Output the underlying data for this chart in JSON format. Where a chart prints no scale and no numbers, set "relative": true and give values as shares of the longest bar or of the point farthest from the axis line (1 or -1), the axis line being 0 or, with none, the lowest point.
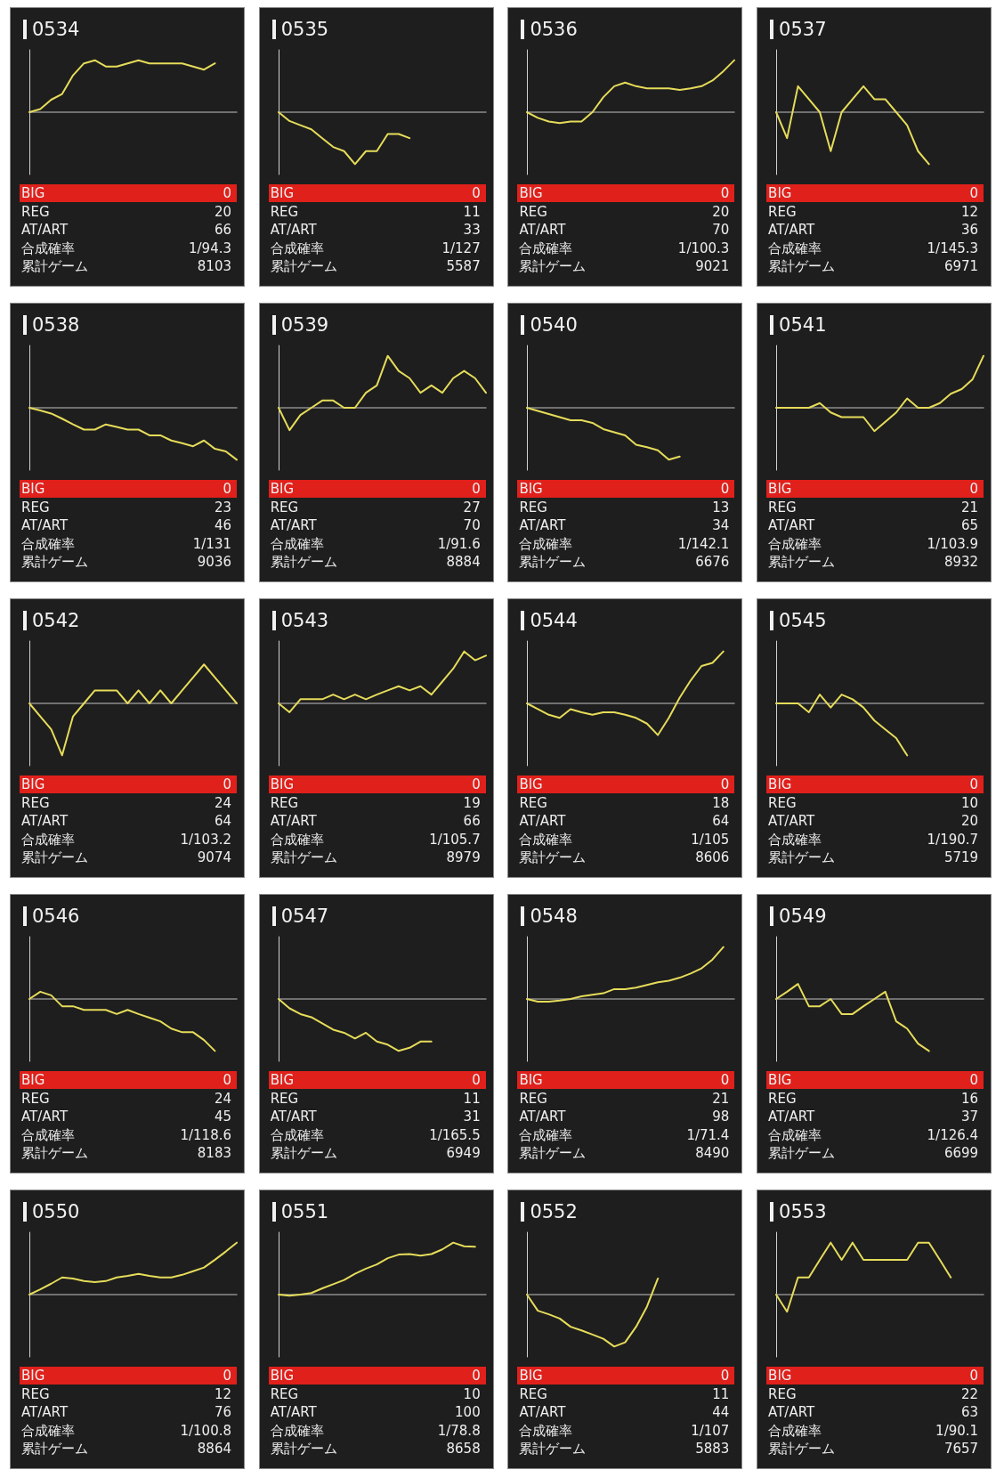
{
  "chart_data": [
    {
      "type": "line",
      "title": "0534",
      "relative": true,
      "color": "#e6dc5a",
      "categories": [
        null,
        null,
        null,
        null,
        null,
        null,
        null,
        null,
        null,
        null,
        null,
        null,
        null,
        null,
        null,
        null,
        null,
        null,
        null,
        null
      ],
      "values": [
        0,
        0.06,
        0.24,
        0.35,
        0.71,
        0.94,
        1,
        0.88,
        0.88,
        0.94,
        1,
        0.94,
        0.94,
        0.94,
        0.94,
        0.88,
        0.82,
        0.94,
        null,
        null
      ],
      "annotations": [
        "BIG",
        "0",
        "REG",
        "20",
        "AT/ART",
        "66",
        "合成確率",
        "1/94.3",
        "累計ゲーム",
        "8103"
      ]
    },
    {
      "type": "line",
      "title": "0535",
      "relative": true,
      "color": "#e6dc5a",
      "categories": [
        null,
        null,
        null,
        null,
        null,
        null,
        null,
        null,
        null,
        null,
        null,
        null,
        null,
        null,
        null,
        null,
        null,
        null,
        null,
        null
      ],
      "values": [
        0,
        -0.17,
        -0.25,
        -0.33,
        -0.5,
        -0.67,
        -0.75,
        -1,
        -0.75,
        -0.75,
        -0.42,
        -0.42,
        -0.5,
        null,
        null,
        null,
        null,
        null,
        null,
        null
      ],
      "annotations": [
        "BIG",
        "0",
        "REG",
        "11",
        "AT/ART",
        "33",
        "合成確率",
        "1/127",
        "累計ゲーム",
        "5587"
      ]
    },
    {
      "type": "line",
      "title": "0536",
      "relative": true,
      "color": "#e6dc5a",
      "categories": [
        null,
        null,
        null,
        null,
        null,
        null,
        null,
        null,
        null,
        null,
        null,
        null,
        null,
        null,
        null,
        null,
        null,
        null,
        null,
        null
      ],
      "values": [
        0,
        -0.11,
        -0.18,
        -0.21,
        -0.18,
        -0.18,
        0,
        0.29,
        0.5,
        0.57,
        0.5,
        0.46,
        0.46,
        0.46,
        0.43,
        0.46,
        0.5,
        0.61,
        0.79,
        1
      ],
      "annotations": [
        "BIG",
        "0",
        "REG",
        "20",
        "AT/ART",
        "70",
        "合成確率",
        "1/100.3",
        "累計ゲーム",
        "9021"
      ]
    },
    {
      "type": "line",
      "title": "0537",
      "relative": true,
      "color": "#e6dc5a",
      "categories": [
        null,
        null,
        null,
        null,
        null,
        null,
        null,
        null,
        null,
        null,
        null,
        null,
        null,
        null,
        null,
        null,
        null,
        null,
        null,
        null
      ],
      "values": [
        0,
        -0.5,
        0.5,
        0.25,
        0,
        -0.75,
        0,
        0.25,
        0.5,
        0.25,
        0.25,
        0,
        -0.25,
        -0.75,
        -1,
        null,
        null,
        null,
        null,
        null
      ],
      "annotations": [
        "BIG",
        "0",
        "REG",
        "12",
        "AT/ART",
        "36",
        "合成確率",
        "1/145.3",
        "累計ゲーム",
        "6971"
      ]
    },
    {
      "type": "line",
      "title": "0538",
      "relative": true,
      "color": "#e6dc5a",
      "categories": [
        null,
        null,
        null,
        null,
        null,
        null,
        null,
        null,
        null,
        null,
        null,
        null,
        null,
        null,
        null,
        null,
        null,
        null,
        null,
        null
      ],
      "values": [
        0,
        -0.05,
        -0.11,
        -0.21,
        -0.32,
        -0.42,
        -0.42,
        -0.32,
        -0.37,
        -0.42,
        -0.42,
        -0.53,
        -0.53,
        -0.63,
        -0.68,
        -0.74,
        -0.63,
        -0.79,
        -0.84,
        -1
      ],
      "annotations": [
        "BIG",
        "0",
        "REG",
        "23",
        "AT/ART",
        "46",
        "合成確率",
        "1/131",
        "累計ゲーム",
        "9036"
      ]
    },
    {
      "type": "line",
      "title": "0539",
      "relative": true,
      "color": "#e6dc5a",
      "categories": [
        null,
        null,
        null,
        null,
        null,
        null,
        null,
        null,
        null,
        null,
        null,
        null,
        null,
        null,
        null,
        null,
        null,
        null,
        null,
        null
      ],
      "values": [
        0,
        -0.43,
        -0.14,
        0,
        0.14,
        0.14,
        0,
        0,
        0.29,
        0.43,
        1,
        0.71,
        0.57,
        0.29,
        0.43,
        0.29,
        0.57,
        0.71,
        0.57,
        0.29
      ],
      "annotations": [
        "BIG",
        "0",
        "REG",
        "27",
        "AT/ART",
        "70",
        "合成確率",
        "1/91.6",
        "累計ゲーム",
        "8884"
      ]
    },
    {
      "type": "line",
      "title": "0540",
      "relative": true,
      "color": "#e6dc5a",
      "categories": [
        null,
        null,
        null,
        null,
        null,
        null,
        null,
        null,
        null,
        null,
        null,
        null,
        null,
        null,
        null,
        null,
        null,
        null,
        null,
        null
      ],
      "values": [
        0,
        -0.06,
        -0.12,
        -0.18,
        -0.24,
        -0.24,
        -0.29,
        -0.41,
        -0.47,
        -0.53,
        -0.71,
        -0.76,
        -0.82,
        -1,
        -0.94,
        null,
        null,
        null,
        null,
        null
      ],
      "annotations": [
        "BIG",
        "0",
        "REG",
        "13",
        "AT/ART",
        "34",
        "合成確率",
        "1/142.1",
        "累計ゲーム",
        "6676"
      ]
    },
    {
      "type": "line",
      "title": "0541",
      "relative": true,
      "color": "#e6dc5a",
      "categories": [
        null,
        null,
        null,
        null,
        null,
        null,
        null,
        null,
        null,
        null,
        null,
        null,
        null,
        null,
        null,
        null,
        null,
        null,
        null,
        null
      ],
      "values": [
        0,
        0,
        0,
        0,
        0.09,
        -0.09,
        -0.18,
        -0.18,
        -0.18,
        -0.45,
        -0.27,
        -0.09,
        0.18,
        0,
        0,
        0.09,
        0.27,
        0.36,
        0.55,
        1
      ],
      "annotations": [
        "BIG",
        "0",
        "REG",
        "21",
        "AT/ART",
        "65",
        "合成確率",
        "1/103.9",
        "累計ゲーム",
        "8932"
      ]
    },
    {
      "type": "line",
      "title": "0542",
      "relative": true,
      "color": "#e6dc5a",
      "categories": [
        null,
        null,
        null,
        null,
        null,
        null,
        null,
        null,
        null,
        null,
        null,
        null,
        null,
        null,
        null,
        null,
        null,
        null,
        null,
        null
      ],
      "values": [
        0,
        -0.25,
        -0.5,
        -1,
        -0.25,
        0,
        0.25,
        0.25,
        0.25,
        0,
        0.25,
        0,
        0.25,
        0,
        0.25,
        0.5,
        0.75,
        0.5,
        0.25,
        0
      ],
      "annotations": [
        "BIG",
        "0",
        "REG",
        "24",
        "AT/ART",
        "64",
        "合成確率",
        "1/103.2",
        "累計ゲーム",
        "9074"
      ]
    },
    {
      "type": "line",
      "title": "0543",
      "relative": true,
      "color": "#e6dc5a",
      "categories": [
        null,
        null,
        null,
        null,
        null,
        null,
        null,
        null,
        null,
        null,
        null,
        null,
        null,
        null,
        null,
        null,
        null,
        null,
        null,
        null
      ],
      "values": [
        0,
        -0.17,
        0.08,
        0.08,
        0.08,
        0.17,
        0.08,
        0.17,
        0.08,
        0.17,
        0.25,
        0.33,
        0.25,
        0.33,
        0.17,
        0.42,
        0.67,
        1,
        0.83,
        0.92
      ],
      "annotations": [
        "BIG",
        "0",
        "REG",
        "19",
        "AT/ART",
        "66",
        "合成確率",
        "1/105.7",
        "累計ゲーム",
        "8979"
      ]
    },
    {
      "type": "line",
      "title": "0544",
      "relative": true,
      "color": "#e6dc5a",
      "categories": [
        null,
        null,
        null,
        null,
        null,
        null,
        null,
        null,
        null,
        null,
        null,
        null,
        null,
        null,
        null,
        null,
        null,
        null,
        null,
        null
      ],
      "values": [
        0,
        -0.11,
        -0.22,
        -0.28,
        -0.11,
        -0.17,
        -0.22,
        -0.17,
        -0.17,
        -0.22,
        -0.28,
        -0.39,
        -0.61,
        -0.28,
        0.11,
        0.44,
        0.72,
        0.78,
        1,
        null
      ],
      "annotations": [
        "BIG",
        "0",
        "REG",
        "18",
        "AT/ART",
        "64",
        "合成確率",
        "1/105",
        "累計ゲーム",
        "8606"
      ]
    },
    {
      "type": "line",
      "title": "0545",
      "relative": true,
      "color": "#e6dc5a",
      "categories": [
        null,
        null,
        null,
        null,
        null,
        null,
        null,
        null,
        null,
        null,
        null,
        null,
        null,
        null,
        null,
        null,
        null,
        null,
        null,
        null
      ],
      "values": [
        0,
        0,
        0,
        -0.17,
        0.17,
        -0.08,
        0.17,
        0.08,
        -0.08,
        -0.33,
        -0.5,
        -0.67,
        -1,
        null,
        null,
        null,
        null,
        null,
        null,
        null
      ],
      "annotations": [
        "BIG",
        "0",
        "REG",
        "10",
        "AT/ART",
        "20",
        "合成確率",
        "1/190.7",
        "累計ゲーム",
        "5719"
      ]
    },
    {
      "type": "line",
      "title": "0546",
      "relative": true,
      "color": "#e6dc5a",
      "categories": [
        null,
        null,
        null,
        null,
        null,
        null,
        null,
        null,
        null,
        null,
        null,
        null,
        null,
        null,
        null,
        null,
        null,
        null,
        null,
        null
      ],
      "values": [
        0,
        0.14,
        0.07,
        -0.14,
        -0.14,
        -0.21,
        -0.21,
        -0.21,
        -0.29,
        -0.21,
        -0.29,
        -0.36,
        -0.43,
        -0.57,
        -0.64,
        -0.64,
        -0.79,
        -1,
        null,
        null
      ],
      "annotations": [
        "BIG",
        "0",
        "REG",
        "24",
        "AT/ART",
        "45",
        "合成確率",
        "1/118.6",
        "累計ゲーム",
        "8183"
      ]
    },
    {
      "type": "line",
      "title": "0547",
      "relative": true,
      "color": "#e6dc5a",
      "categories": [
        null,
        null,
        null,
        null,
        null,
        null,
        null,
        null,
        null,
        null,
        null,
        null,
        null,
        null,
        null,
        null,
        null,
        null,
        null,
        null
      ],
      "values": [
        0,
        -0.18,
        -0.29,
        -0.35,
        -0.47,
        -0.59,
        -0.65,
        -0.76,
        -0.65,
        -0.82,
        -0.88,
        -1,
        -0.94,
        -0.82,
        -0.82,
        null,
        null,
        null,
        null,
        null
      ],
      "annotations": [
        "BIG",
        "0",
        "REG",
        "11",
        "AT/ART",
        "31",
        "合成確率",
        "1/165.5",
        "累計ゲーム",
        "6949"
      ]
    },
    {
      "type": "line",
      "title": "0548",
      "relative": true,
      "color": "#e6dc5a",
      "categories": [
        null,
        null,
        null,
        null,
        null,
        null,
        null,
        null,
        null,
        null,
        null,
        null,
        null,
        null,
        null,
        null,
        null,
        null,
        null,
        null
      ],
      "values": [
        0,
        -0.05,
        -0.05,
        -0.03,
        0,
        0.05,
        0.08,
        0.11,
        0.19,
        0.19,
        0.22,
        0.27,
        0.32,
        0.35,
        0.41,
        0.49,
        0.59,
        0.76,
        1,
        null
      ],
      "annotations": [
        "BIG",
        "0",
        "REG",
        "21",
        "AT/ART",
        "98",
        "合成確率",
        "1/71.4",
        "累計ゲーム",
        "8490"
      ]
    },
    {
      "type": "line",
      "title": "0549",
      "relative": true,
      "color": "#e6dc5a",
      "categories": [
        null,
        null,
        null,
        null,
        null,
        null,
        null,
        null,
        null,
        null,
        null,
        null,
        null,
        null,
        null,
        null,
        null,
        null,
        null,
        null
      ],
      "values": [
        0,
        0.14,
        0.29,
        -0.14,
        -0.14,
        0,
        -0.29,
        -0.29,
        -0.14,
        0,
        0.14,
        -0.43,
        -0.57,
        -0.86,
        -1,
        null,
        null,
        null,
        null,
        null
      ],
      "annotations": [
        "BIG",
        "0",
        "REG",
        "16",
        "AT/ART",
        "37",
        "合成確率",
        "1/126.4",
        "累計ゲーム",
        "6699"
      ]
    },
    {
      "type": "line",
      "title": "0550",
      "relative": true,
      "color": "#e6dc5a",
      "categories": [
        null,
        null,
        null,
        null,
        null,
        null,
        null,
        null,
        null,
        null,
        null,
        null,
        null,
        null,
        null,
        null,
        null,
        null,
        null,
        null
      ],
      "values": [
        0,
        0.1,
        0.21,
        0.33,
        0.31,
        0.26,
        0.24,
        0.26,
        0.33,
        0.36,
        0.4,
        0.36,
        0.33,
        0.33,
        0.38,
        0.45,
        0.52,
        0.67,
        0.83,
        1
      ],
      "annotations": [
        "BIG",
        "0",
        "REG",
        "12",
        "AT/ART",
        "76",
        "合成確率",
        "1/100.8",
        "累計ゲーム",
        "8864"
      ]
    },
    {
      "type": "line",
      "title": "0551",
      "relative": true,
      "color": "#e6dc5a",
      "categories": [
        null,
        null,
        null,
        null,
        null,
        null,
        null,
        null,
        null,
        null,
        null,
        null,
        null,
        null,
        null,
        null,
        null,
        null,
        null,
        null
      ],
      "values": [
        0,
        -0.02,
        0,
        0.03,
        0.12,
        0.2,
        0.28,
        0.4,
        0.5,
        0.58,
        0.7,
        0.77,
        0.78,
        0.75,
        0.78,
        0.87,
        1,
        0.93,
        0.92,
        null
      ],
      "annotations": [
        "BIG",
        "0",
        "REG",
        "10",
        "AT/ART",
        "100",
        "合成確率",
        "1/78.8",
        "累計ゲーム",
        "8658"
      ]
    },
    {
      "type": "line",
      "title": "0552",
      "relative": true,
      "color": "#e6dc5a",
      "categories": [
        null,
        null,
        null,
        null,
        null,
        null,
        null,
        null,
        null,
        null,
        null,
        null,
        null,
        null,
        null,
        null,
        null,
        null,
        null,
        null
      ],
      "values": [
        0,
        -0.31,
        -0.38,
        -0.46,
        -0.62,
        -0.69,
        -0.77,
        -0.85,
        -1,
        -0.92,
        -0.62,
        -0.23,
        0.31,
        null,
        null,
        null,
        null,
        null,
        null,
        null
      ],
      "annotations": [
        "BIG",
        "0",
        "REG",
        "11",
        "AT/ART",
        "44",
        "合成確率",
        "1/107",
        "累計ゲーム",
        "5883"
      ]
    },
    {
      "type": "line",
      "title": "0553",
      "relative": true,
      "color": "#e6dc5a",
      "categories": [
        null,
        null,
        null,
        null,
        null,
        null,
        null,
        null,
        null,
        null,
        null,
        null,
        null,
        null,
        null,
        null,
        null,
        null,
        null,
        null
      ],
      "values": [
        0,
        -0.33,
        0.33,
        0.33,
        0.67,
        1,
        0.67,
        1,
        0.67,
        0.67,
        0.67,
        0.67,
        0.67,
        1,
        1,
        0.67,
        0.33,
        null,
        null,
        null
      ],
      "annotations": [
        "BIG",
        "0",
        "REG",
        "22",
        "AT/ART",
        "63",
        "合成確率",
        "1/90.1",
        "累計ゲーム",
        "7657"
      ]
    }
  ]
}
